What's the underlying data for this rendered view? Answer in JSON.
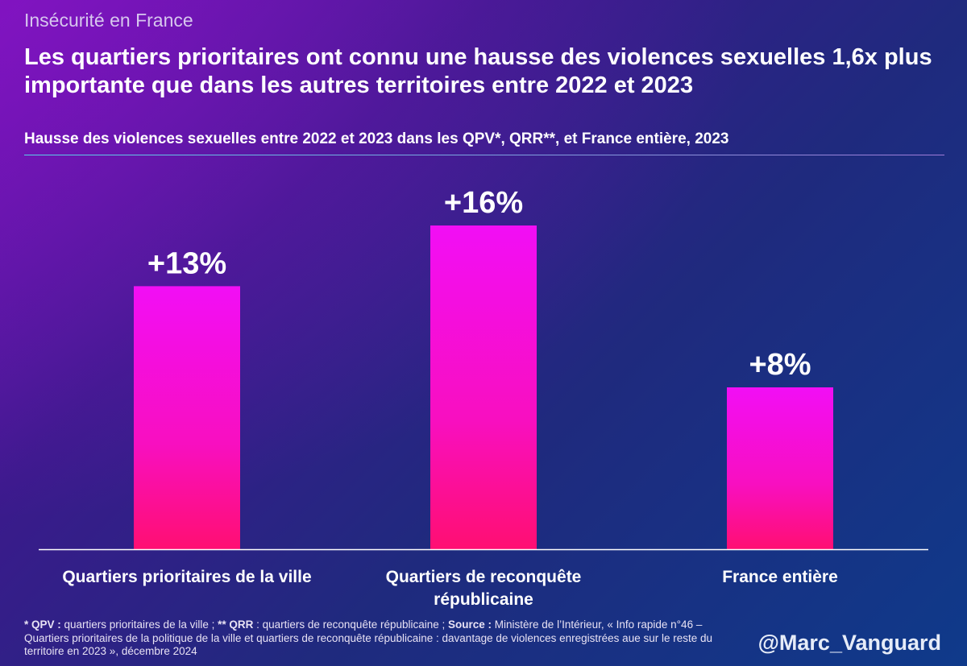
{
  "kicker": "Insécurité en France",
  "title": "Les quartiers prioritaires ont connu une hausse des violences sexuelles 1,6x plus importante que dans les autres territoires entre 2022 et 2023",
  "footnote": {
    "qpv_key": "* QPV :",
    "qpv_text": " quartiers prioritaires de la ville ; ",
    "qrr_key": "** QRR",
    "qrr_text": " : quartiers de reconquête républicaine ; ",
    "source_key": "Source :",
    "source_text": " Ministère de l’Intérieur, « Info rapide n°46 – Quartiers prioritaires de la politique de la ville et quartiers de reconquête républicaine : davantage de violences enregistrées aue sur le reste du territoire en 2023 », décembre 2024"
  },
  "handle": "@Marc_Vanguard",
  "colors": {
    "bar_top": "#f20ef5",
    "bar_bottom": "#ff0f72",
    "axis": "#ffffff"
  },
  "chart_data": {
    "type": "bar",
    "title": "Hausse des violences sexuelles entre 2022 et 2023 dans les QPV*, QRR**, et France entière, 2023",
    "categories": [
      [
        "Quartiers prioritaires de la ville"
      ],
      [
        "Quartiers de reconquête",
        "républicaine"
      ],
      [
        "France entière"
      ]
    ],
    "values": [
      13,
      16,
      8
    ],
    "data_labels": [
      "+13%",
      "+16%",
      "+8%"
    ],
    "unit": "%",
    "ylim": [
      0,
      16
    ],
    "xlabel": "",
    "ylabel": "",
    "grid": false,
    "legend": "none"
  }
}
